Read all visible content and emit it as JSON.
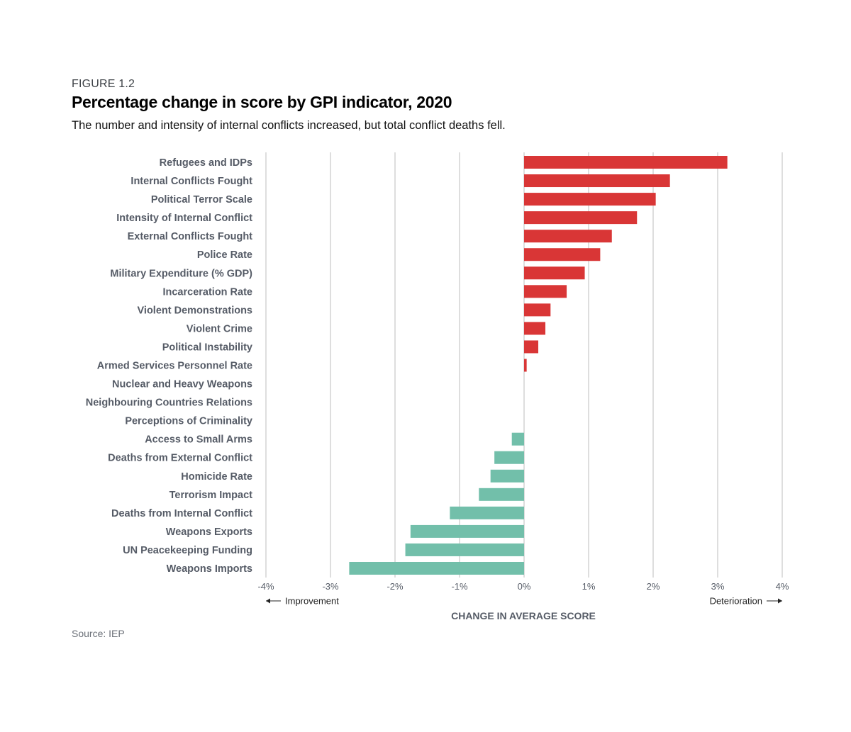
{
  "figure_label": "FIGURE 1.2",
  "source": "Source: IEP",
  "colors": {
    "deterioration": "#d93636",
    "improvement": "#72bfaa",
    "grid": "#d4d4d4",
    "label": "#555b66"
  },
  "chart_data": {
    "type": "bar",
    "orientation": "horizontal",
    "title": "Percentage change in score by GPI indicator, 2020",
    "subtitle": "The number and intensity of internal conflicts increased, but total conflict deaths fell.",
    "xlabel": "CHANGE IN AVERAGE SCORE",
    "xlim": [
      -4,
      4
    ],
    "xticks": [
      -4,
      -3,
      -2,
      -1,
      0,
      1,
      2,
      3,
      4
    ],
    "xtick_labels": [
      "-4%",
      "-3%",
      "-2%",
      "-1%",
      "0%",
      "1%",
      "2%",
      "3%",
      "4%"
    ],
    "direction_left": "Improvement",
    "direction_right": "Deterioration",
    "categories": [
      "Refugees and IDPs",
      "Internal Conflicts Fought",
      "Political Terror Scale",
      "Intensity of Internal Conflict",
      "External Conflicts Fought",
      "Police Rate",
      "Military Expenditure (% GDP)",
      "Incarceration Rate",
      "Violent Demonstrations",
      "Violent Crime",
      "Political Instability",
      "Armed Services Personnel Rate",
      "Nuclear and Heavy Weapons",
      "Neighbouring Countries Relations",
      "Perceptions of Criminality",
      "Access to Small Arms",
      "Deaths from External Conflict",
      "Homicide Rate",
      "Terrorism Impact",
      "Deaths from Internal Conflict",
      "Weapons Exports",
      "UN Peacekeeping Funding",
      "Weapons Imports"
    ],
    "values": [
      3.15,
      2.26,
      2.04,
      1.75,
      1.36,
      1.18,
      0.94,
      0.66,
      0.41,
      0.33,
      0.22,
      0.04,
      0,
      0,
      0,
      -0.19,
      -0.46,
      -0.52,
      -0.7,
      -1.15,
      -1.76,
      -1.84,
      -2.71
    ],
    "grid": true
  }
}
